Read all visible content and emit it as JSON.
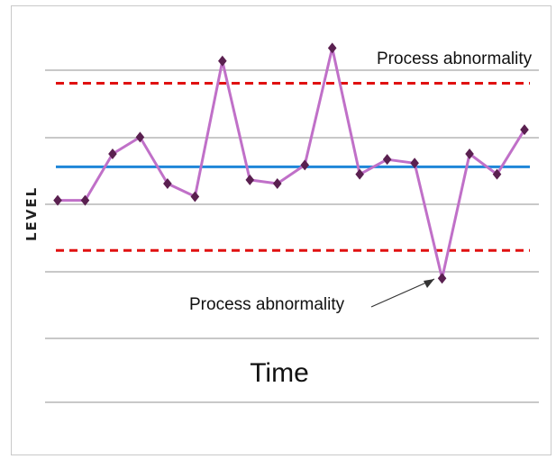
{
  "chart_data": {
    "type": "line",
    "title": "",
    "xlabel": "Time",
    "ylabel": "LEVEL",
    "grid": true,
    "center_line": 0,
    "upper_limit": 4.5,
    "lower_limit": -4.5,
    "ylim": [
      -15,
      8.5
    ],
    "series": [
      {
        "values": [
          -1.8,
          -1.8,
          0.7,
          1.6,
          -0.9,
          -1.6,
          5.7,
          -0.7,
          -0.9,
          0.1,
          6.4,
          -0.4,
          0.4,
          0.2,
          -6.0,
          0.7,
          -0.4,
          2.0
        ]
      }
    ],
    "annotations": [
      {
        "text": "Process  abnormality",
        "position": "top-right"
      },
      {
        "text": "Process abnormality",
        "position": "bottom-center",
        "points_to_index": 14
      }
    ],
    "colors": {
      "series": "#c070c8",
      "markers": "#5a2050",
      "center_line": "#1f86d8",
      "limits": "#e01010",
      "grid": "#a8a8a8"
    }
  }
}
